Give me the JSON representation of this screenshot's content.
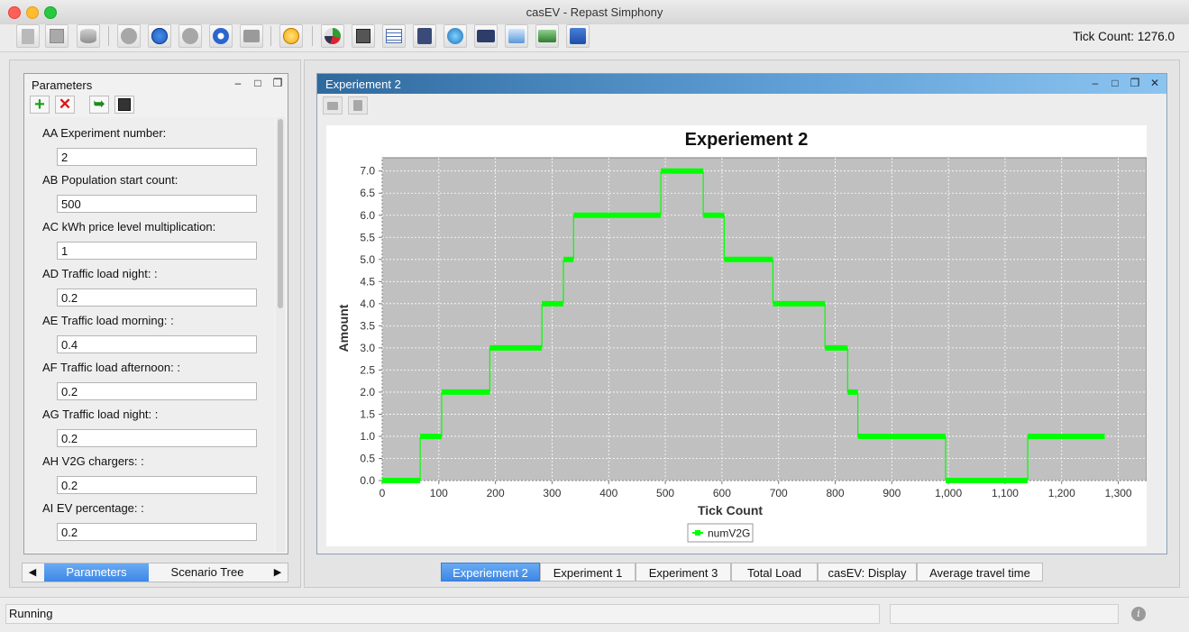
{
  "window": {
    "title": "casEV - Repast Simphony"
  },
  "toolbar": {
    "tick_label": "Tick Count: 1276.0",
    "icons": [
      "load-model-icon",
      "save-model-icon",
      "database-icon",
      "initialize-run-icon",
      "pause-icon",
      "step-icon",
      "stop-icon",
      "reset-icon",
      "yellow-star-icon",
      "pie-chart-icon",
      "save-settings-icon",
      "table-icon",
      "calculator-icon",
      "globe-icon",
      "film-icon",
      "zoom-icon",
      "camera-group-icon",
      "grid-display-icon"
    ]
  },
  "parameters": {
    "title": "Parameters",
    "items": [
      {
        "label": "AA Experiment number:",
        "value": "2"
      },
      {
        "label": "AB Population start count:",
        "value": "500"
      },
      {
        "label": "AC kWh price level multiplication:",
        "value": "1"
      },
      {
        "label": "AD Traffic load night: :",
        "value": "0.2"
      },
      {
        "label": "AE Traffic load morning: :",
        "value": "0.4"
      },
      {
        "label": "AF Traffic load afternoon: :",
        "value": "0.2"
      },
      {
        "label": "AG Traffic load night: :",
        "value": "0.2"
      },
      {
        "label": "AH V2G chargers: :",
        "value": "0.2"
      },
      {
        "label": "AI EV percentage: :",
        "value": "0.2"
      }
    ]
  },
  "left_tabs": {
    "tab1": "Parameters",
    "tab2": "Scenario Tree"
  },
  "inner_frame": {
    "title": "Experiement 2"
  },
  "chart_data": {
    "type": "line",
    "title": "Experiement 2",
    "xlabel": "Tick Count",
    "ylabel": "Amount",
    "xlim": [
      0,
      1350
    ],
    "ylim": [
      0,
      7.3
    ],
    "xticks": [
      0,
      100,
      200,
      300,
      400,
      500,
      600,
      700,
      800,
      900,
      1000,
      1100,
      1200,
      1300
    ],
    "xtick_labels": [
      "0",
      "100",
      "200",
      "300",
      "400",
      "500",
      "600",
      "700",
      "800",
      "900",
      "1,000",
      "1,100",
      "1,200",
      "1,300"
    ],
    "yticks": [
      0,
      0.5,
      1,
      1.5,
      2,
      2.5,
      3,
      3.5,
      4,
      4.5,
      5,
      5.5,
      6,
      6.5,
      7
    ],
    "ytick_labels": [
      "0.0",
      "0.5",
      "1.0",
      "1.5",
      "2.0",
      "2.5",
      "3.0",
      "3.5",
      "4.0",
      "4.5",
      "5.0",
      "5.5",
      "6.0",
      "6.5",
      "7.0"
    ],
    "grid": true,
    "legend_position": "bottom-center",
    "series": [
      {
        "name": "numV2G",
        "color": "#00ff00",
        "step": true,
        "x": [
          0,
          67,
          105,
          190,
          282,
          320,
          338,
          492,
          567,
          604,
          690,
          782,
          822,
          840,
          995,
          1140,
          1276
        ],
        "y": [
          0,
          1,
          2,
          3,
          4,
          5,
          6,
          7,
          6,
          5,
          4,
          3,
          2,
          1,
          0,
          1,
          1
        ]
      }
    ]
  },
  "chart_tabs": [
    "Experiement 2",
    "Experiment 1",
    "Experiment 3",
    "Total Load",
    "casEV: Display",
    "Average travel time"
  ],
  "status": {
    "text": "Running"
  }
}
